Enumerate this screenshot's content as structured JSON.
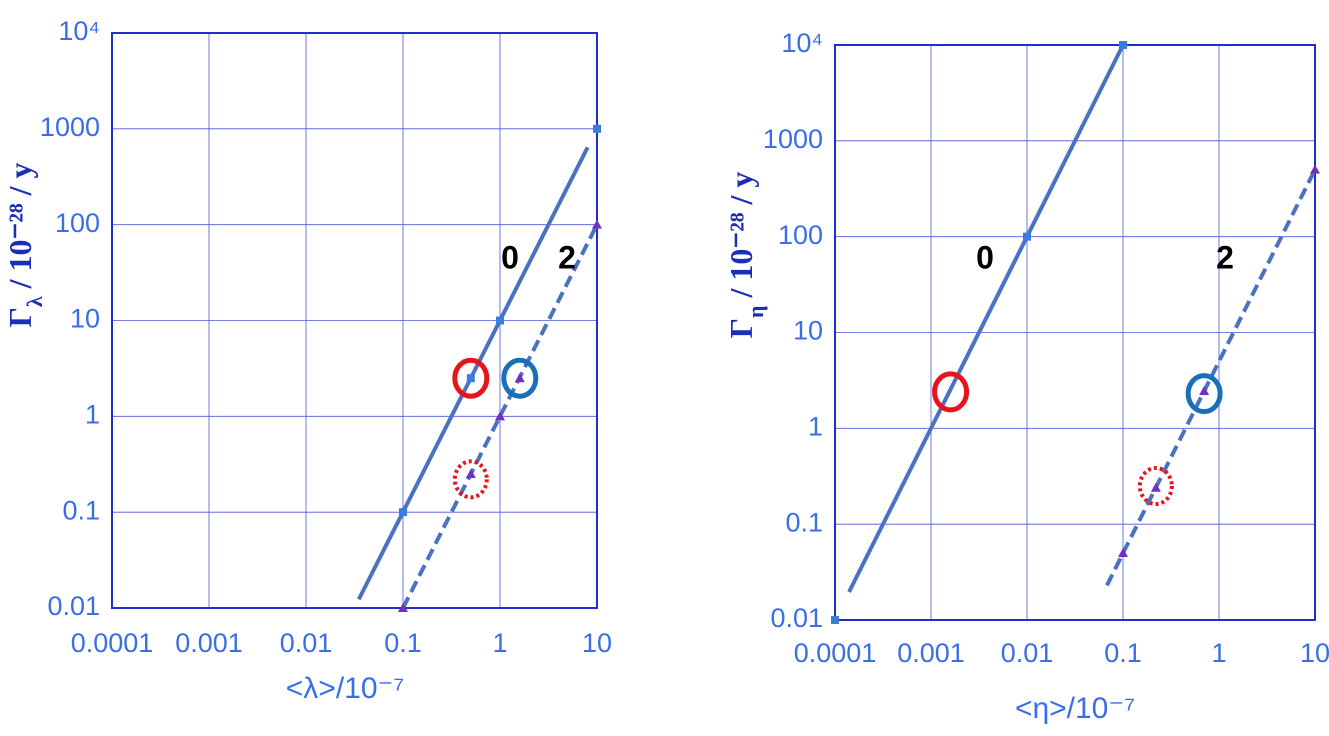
{
  "chart_data": [
    {
      "type": "line",
      "xlabel": "<λ>/10⁻⁷",
      "ylabel": {
        "symbol": "Γ",
        "subscript": "λ",
        "rest": " / 10⁻²⁸ / y"
      },
      "log_x": true,
      "log_y": true,
      "grid": true,
      "xlim": [
        0.0001,
        10
      ],
      "ylim": [
        0.01,
        10000
      ],
      "xticks": [
        0.0001,
        0.001,
        0.01,
        0.1,
        1,
        10
      ],
      "yticks": [
        0.01,
        0.1,
        1,
        10,
        100,
        1000,
        {
          "value": 10000,
          "label": "10⁴"
        }
      ],
      "series": [
        {
          "name": "0",
          "color": "#4a72c0",
          "marker_color": "#3b7ddd",
          "marker": "square",
          "dashed": false,
          "x": [
            0.1,
            0.5,
            1,
            10
          ],
          "values": [
            0.1,
            2.5,
            10,
            1000
          ],
          "fit_x": [
            0.035,
            8
          ],
          "fit_values": [
            0.0123,
            640
          ]
        },
        {
          "name": "2",
          "color": "#4a72c0",
          "marker_color": "#7030c0",
          "marker": "triangle",
          "dashed": true,
          "x": [
            0.1,
            0.5,
            1,
            1.6,
            10
          ],
          "values": [
            0.01,
            0.25,
            1,
            2.5,
            100
          ],
          "fit_x": [
            0.1,
            10
          ],
          "fit_values": [
            0.01,
            100
          ]
        }
      ],
      "highlights": [
        {
          "x": 0.5,
          "y": 2.5,
          "color": "#e8141c",
          "dotted": false
        },
        {
          "x": 1.6,
          "y": 2.5,
          "color": "#1a70b8",
          "dotted": false
        },
        {
          "x": 0.5,
          "y": 0.22,
          "color": "#e8141c",
          "dotted": true
        }
      ]
    },
    {
      "type": "line",
      "xlabel": "<η>/10⁻⁷",
      "ylabel": {
        "symbol": "Γ",
        "subscript": "η",
        "rest": " / 10⁻²⁸ / y"
      },
      "log_x": true,
      "log_y": true,
      "grid": true,
      "xlim": [
        0.0001,
        10
      ],
      "ylim": [
        0.01,
        10000
      ],
      "xticks": [
        0.0001,
        0.001,
        0.01,
        0.1,
        1,
        10
      ],
      "yticks": [
        0.01,
        0.1,
        1,
        10,
        100,
        1000,
        {
          "value": 10000,
          "label": "10⁴"
        }
      ],
      "series": [
        {
          "name": "0",
          "color": "#4a72c0",
          "marker_color": "#3b7ddd",
          "marker": "square",
          "dashed": false,
          "x": [
            0.0001,
            0.01,
            0.1
          ],
          "values": [
            0.01,
            100,
            10000
          ],
          "fit_x": [
            0.00014,
            0.1
          ],
          "fit_values": [
            0.0196,
            10000
          ]
        },
        {
          "name": "2",
          "color": "#4a72c0",
          "marker_color": "#7030c0",
          "marker": "triangle",
          "dashed": true,
          "x": [
            0.1,
            0.22,
            0.7,
            10
          ],
          "values": [
            0.05,
            0.24,
            2.45,
            500
          ],
          "fit_x": [
            0.068,
            10
          ],
          "fit_values": [
            0.023,
            500
          ]
        }
      ],
      "highlights": [
        {
          "x": 0.0016,
          "y": 2.4,
          "color": "#e8141c",
          "dotted": false
        },
        {
          "x": 0.7,
          "y": 2.3,
          "color": "#1a70b8",
          "dotted": false
        },
        {
          "x": 0.22,
          "y": 0.25,
          "color": "#e8141c",
          "dotted": true
        }
      ]
    }
  ]
}
